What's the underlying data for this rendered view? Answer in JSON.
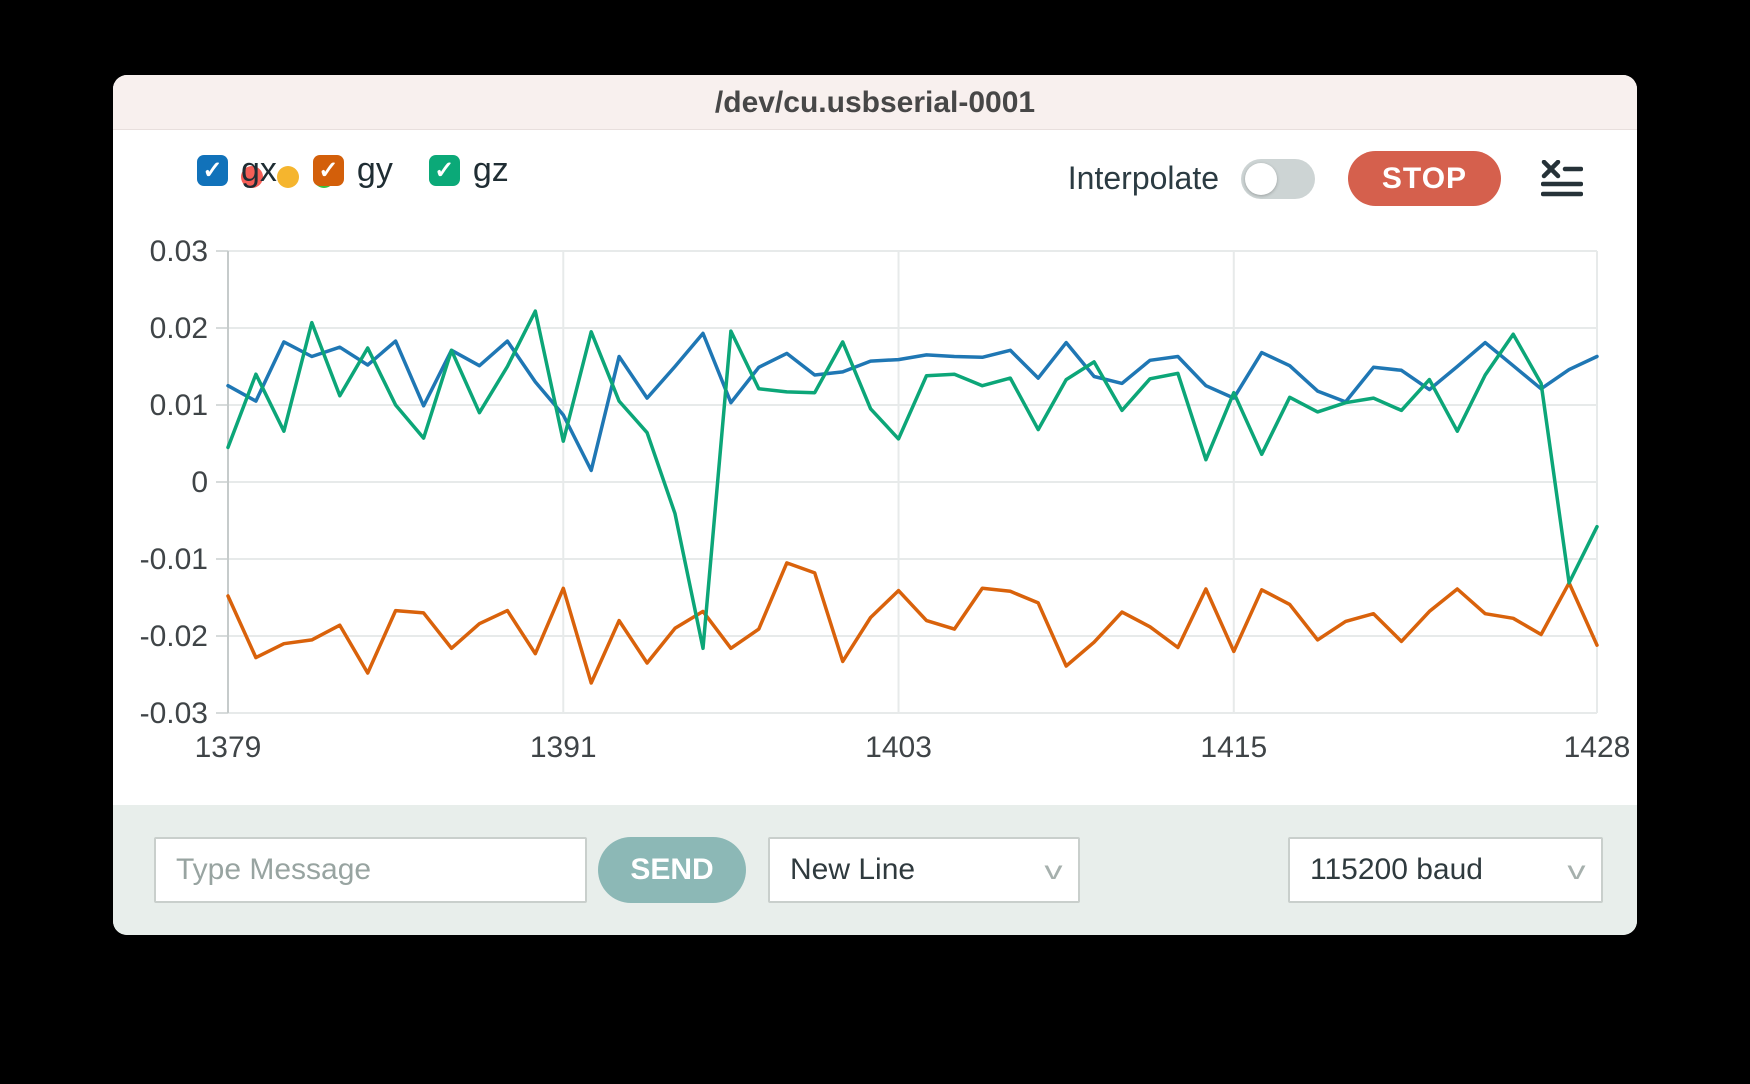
{
  "window": {
    "title": "/dev/cu.usbserial-0001",
    "traffic_lights": [
      {
        "name": "close",
        "color": "#f55f57"
      },
      {
        "name": "minimize",
        "color": "#f5b52e"
      },
      {
        "name": "maximize",
        "color": "#37c23d"
      }
    ]
  },
  "toolbar": {
    "check_glyph": "✓",
    "series_toggles": [
      {
        "label": "gx",
        "checked": true,
        "color": "#1172ba"
      },
      {
        "label": "gy",
        "checked": true,
        "color": "#d35f0a"
      },
      {
        "label": "gz",
        "checked": true,
        "color": "#0ba978"
      }
    ],
    "interpolate_label": "Interpolate",
    "interpolate_on": false,
    "stop_label": "STOP",
    "stop_color": "#d5604d",
    "menu_icon": "clear-list-icon",
    "menu_icon_color": "#263238"
  },
  "chart_data": {
    "type": "line",
    "title": "",
    "xlabel": "",
    "ylabel": "",
    "xlim": [
      1379,
      1428
    ],
    "ylim": [
      -0.03,
      0.03
    ],
    "xticks": [
      1379,
      1391,
      1403,
      1415,
      1428
    ],
    "yticks": [
      0.03,
      0.02,
      0.01,
      0,
      -0.01,
      -0.02,
      -0.03
    ],
    "grid": true,
    "legend_position": "top-left",
    "x": [
      1379,
      1380,
      1381,
      1382,
      1383,
      1384,
      1385,
      1386,
      1387,
      1388,
      1389,
      1390,
      1391,
      1392,
      1393,
      1394,
      1395,
      1396,
      1397,
      1398,
      1399,
      1400,
      1401,
      1402,
      1403,
      1404,
      1405,
      1406,
      1407,
      1408,
      1409,
      1410,
      1411,
      1412,
      1413,
      1414,
      1415,
      1416,
      1417,
      1418,
      1419,
      1420,
      1421,
      1422,
      1423,
      1424,
      1425,
      1426,
      1427,
      1428
    ],
    "series": [
      {
        "name": "gx",
        "color": "#1f77b4",
        "values": [
          0.0125,
          0.0105,
          0.0182,
          0.0163,
          0.0175,
          0.0152,
          0.0183,
          0.0099,
          0.0171,
          0.0151,
          0.0183,
          0.013,
          0.0087,
          0.0015,
          0.0163,
          0.0109,
          0.015,
          0.0193,
          0.0103,
          0.0149,
          0.0167,
          0.0139,
          0.0143,
          0.0157,
          0.0159,
          0.0165,
          0.0163,
          0.0162,
          0.0171,
          0.0135,
          0.0181,
          0.0137,
          0.0128,
          0.0158,
          0.0163,
          0.0125,
          0.0109,
          0.0168,
          0.0151,
          0.0118,
          0.0104,
          0.0149,
          0.0145,
          0.012,
          0.015,
          0.0181,
          0.0151,
          0.0121,
          0.0146,
          0.0163
        ]
      },
      {
        "name": "gy",
        "color": "#d9620b",
        "values": [
          -0.0148,
          -0.0228,
          -0.021,
          -0.0205,
          -0.0186,
          -0.0248,
          -0.0167,
          -0.017,
          -0.0216,
          -0.0184,
          -0.0167,
          -0.0223,
          -0.0138,
          -0.0261,
          -0.018,
          -0.0235,
          -0.019,
          -0.0168,
          -0.0216,
          -0.0191,
          -0.0105,
          -0.0118,
          -0.0233,
          -0.0176,
          -0.0141,
          -0.018,
          -0.0191,
          -0.0138,
          -0.0142,
          -0.0157,
          -0.0239,
          -0.0208,
          -0.0169,
          -0.0188,
          -0.0215,
          -0.0139,
          -0.022,
          -0.014,
          -0.0159,
          -0.0205,
          -0.0181,
          -0.0171,
          -0.0207,
          -0.0168,
          -0.0139,
          -0.0171,
          -0.0177,
          -0.0198,
          -0.0131,
          -0.0212
        ]
      },
      {
        "name": "gz",
        "color": "#0ca678",
        "values": [
          0.0045,
          0.014,
          0.0066,
          0.0207,
          0.0112,
          0.0174,
          0.01,
          0.0057,
          0.0171,
          0.009,
          0.015,
          0.0222,
          0.0053,
          0.0195,
          0.0105,
          0.0064,
          -0.0041,
          -0.0216,
          0.0196,
          0.0121,
          0.0117,
          0.0116,
          0.0182,
          0.0095,
          0.0056,
          0.0138,
          0.014,
          0.0125,
          0.0135,
          0.0068,
          0.0133,
          0.0156,
          0.0093,
          0.0134,
          0.0141,
          0.0029,
          0.0116,
          0.0036,
          0.011,
          0.0091,
          0.0103,
          0.0109,
          0.0093,
          0.0133,
          0.0066,
          0.0139,
          0.0192,
          0.0128,
          -0.0131,
          -0.0058
        ]
      }
    ]
  },
  "footer": {
    "message_input": {
      "value": "",
      "placeholder": "Type Message"
    },
    "send_label": "SEND",
    "send_color": "#8cb8b6",
    "line_ending_select": "New Line",
    "baud_select": "115200 baud"
  }
}
